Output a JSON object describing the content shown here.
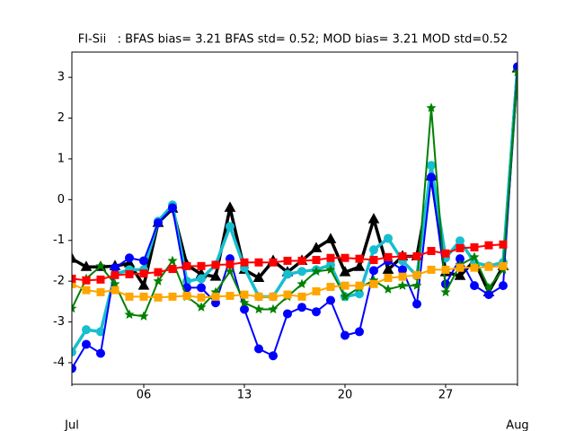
{
  "chart_data": {
    "type": "line",
    "title": "FI-Sii   : BFAS bias= 3.21 BFAS std= 0.52; MOD bias= 3.21 MOD std=0.52",
    "x": [
      1,
      2,
      3,
      4,
      5,
      6,
      7,
      8,
      9,
      10,
      11,
      12,
      13,
      14,
      15,
      16,
      17,
      18,
      19,
      20,
      21,
      22,
      23,
      24,
      25,
      26,
      27,
      28,
      29,
      30,
      31,
      32
    ],
    "xlim": [
      1,
      32
    ],
    "xticks": [
      {
        "value": 6,
        "label": "06"
      },
      {
        "value": 13,
        "label": "13"
      },
      {
        "value": 20,
        "label": "20"
      },
      {
        "value": 27,
        "label": "27"
      }
    ],
    "xticks_minor": [
      {
        "value": 1,
        "label": "Jul"
      },
      {
        "value": 32,
        "label": "Aug"
      }
    ],
    "ylim": [
      -4.53,
      3.62
    ],
    "yticks": [
      -4,
      -3,
      -2,
      -1,
      0,
      1,
      2,
      3
    ],
    "grid": false,
    "series": [
      {
        "color": "#000000",
        "marker": "triangle",
        "linewidth": 3.5,
        "values": [
          -1.45,
          -1.65,
          -1.65,
          -1.63,
          -1.56,
          -2.11,
          -0.57,
          -0.22,
          -1.6,
          -1.83,
          -1.89,
          -0.2,
          -1.72,
          -1.92,
          -1.5,
          -1.78,
          -1.5,
          -1.19,
          -0.97,
          -1.78,
          -1.65,
          -0.48,
          -1.72,
          -1.39,
          -1.39,
          0.57,
          -1.78,
          -1.87,
          -1.5,
          -2.27,
          -1.63,
          3.22
        ]
      },
      {
        "color": "#17becf",
        "marker": "circle",
        "linewidth": 3.5,
        "values": [
          -3.74,
          -3.19,
          -3.24,
          -1.83,
          -1.72,
          -1.72,
          -0.53,
          -0.13,
          -2.0,
          -1.94,
          -1.6,
          -0.66,
          -1.67,
          -2.38,
          -2.38,
          -1.83,
          -1.76,
          -1.72,
          -1.6,
          -2.38,
          -2.31,
          -1.23,
          -0.95,
          -1.5,
          -1.87,
          0.84,
          -1.43,
          -1.01,
          -1.54,
          -1.63,
          -1.54,
          3.24
        ]
      },
      {
        "color": "#0000ff",
        "marker": "circle",
        "linewidth": 2,
        "values": [
          -4.14,
          -3.55,
          -3.77,
          -1.67,
          -1.43,
          -1.5,
          -0.57,
          -0.2,
          -2.16,
          -2.16,
          -2.53,
          -1.45,
          -2.69,
          -3.66,
          -3.83,
          -2.8,
          -2.64,
          -2.75,
          -2.47,
          -3.33,
          -3.24,
          -1.74,
          -1.5,
          -1.72,
          -2.56,
          0.55,
          -2.07,
          -1.45,
          -2.11,
          -2.33,
          -2.11,
          3.26
        ]
      },
      {
        "color": "#008000",
        "marker": "star",
        "linewidth": 2,
        "values": [
          -2.67,
          -1.94,
          -1.63,
          -2.07,
          -2.82,
          -2.86,
          -2.0,
          -1.5,
          -2.38,
          -2.64,
          -2.27,
          -1.76,
          -2.53,
          -2.69,
          -2.69,
          -2.38,
          -2.07,
          -1.76,
          -1.72,
          -2.38,
          -2.16,
          -1.98,
          -2.2,
          -2.11,
          -2.11,
          2.25,
          -2.27,
          -1.6,
          -1.41,
          -2.16,
          -1.72,
          3.13
        ]
      },
      {
        "color": "#ffa500",
        "marker": "square",
        "linewidth": 2,
        "values": [
          -2.07,
          -2.22,
          -2.27,
          -2.22,
          -2.38,
          -2.38,
          -2.4,
          -2.38,
          -2.36,
          -2.4,
          -2.38,
          -2.36,
          -2.33,
          -2.38,
          -2.38,
          -2.33,
          -2.38,
          -2.25,
          -2.14,
          -2.11,
          -2.11,
          -2.07,
          -1.92,
          -1.89,
          -1.85,
          -1.72,
          -1.72,
          -1.67,
          -1.67,
          -1.65,
          -1.63,
          null
        ]
      },
      {
        "color": "#ff0000",
        "marker": "square",
        "linewidth": 2,
        "values": [
          -1.94,
          -1.98,
          -1.96,
          -1.85,
          -1.83,
          -1.81,
          -1.78,
          -1.7,
          -1.63,
          -1.63,
          -1.6,
          -1.59,
          -1.54,
          -1.54,
          -1.54,
          -1.5,
          -1.5,
          -1.48,
          -1.43,
          -1.43,
          -1.45,
          -1.48,
          -1.41,
          -1.39,
          -1.39,
          -1.26,
          -1.32,
          -1.19,
          -1.17,
          -1.12,
          -1.1,
          null
        ]
      }
    ]
  }
}
